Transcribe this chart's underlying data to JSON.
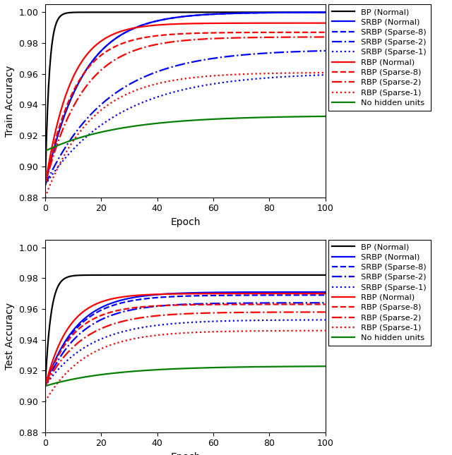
{
  "ylabel_top": "Train Accuracy",
  "ylabel_bottom": "Test Accuracy",
  "xlabel": "Epoch",
  "xlim": [
    0,
    100
  ],
  "ylim": [
    0.88,
    1.005
  ],
  "yticks": [
    0.88,
    0.9,
    0.92,
    0.94,
    0.96,
    0.98,
    1.0
  ],
  "xticks": [
    0,
    20,
    40,
    60,
    80,
    100
  ],
  "legend_entries": [
    {
      "label": "BP (Normal)",
      "color": "#000000",
      "ls": "-",
      "lw": 1.6
    },
    {
      "label": "SRBP (Normal)",
      "color": "#0000ff",
      "ls": "-",
      "lw": 1.6
    },
    {
      "label": "SRBP (Sparse-8)",
      "color": "#0000ff",
      "ls": "--",
      "lw": 1.6
    },
    {
      "label": "SRBP (Sparse-2)",
      "color": "#0000ff",
      "ls": "-.",
      "lw": 1.6
    },
    {
      "label": "SRBP (Sparse-1)",
      "color": "#0000ff",
      "ls": ":",
      "lw": 1.6
    },
    {
      "label": "RBP (Normal)",
      "color": "#ff0000",
      "ls": "-",
      "lw": 1.6
    },
    {
      "label": "RBP (Sparse-8)",
      "color": "#ff0000",
      "ls": "--",
      "lw": 1.6
    },
    {
      "label": "RBP (Sparse-2)",
      "color": "#ff0000",
      "ls": "-.",
      "lw": 1.6
    },
    {
      "label": "RBP (Sparse-1)",
      "color": "#ff0000",
      "ls": ":",
      "lw": 1.6
    },
    {
      "label": "No hidden units",
      "color": "#008000",
      "ls": "-",
      "lw": 1.6
    }
  ],
  "train_curves": [
    [
      0.888,
      1.0,
      0.7
    ],
    [
      0.888,
      1.0,
      0.075
    ],
    [
      0.888,
      1.0,
      0.075
    ],
    [
      0.888,
      0.976,
      0.045
    ],
    [
      0.888,
      0.961,
      0.038
    ],
    [
      0.888,
      0.993,
      0.11
    ],
    [
      0.888,
      0.987,
      0.095
    ],
    [
      0.888,
      0.984,
      0.075
    ],
    [
      0.88,
      0.961,
      0.06
    ],
    [
      0.91,
      0.933,
      0.038
    ]
  ],
  "test_curves": [
    [
      0.91,
      0.982,
      0.5
    ],
    [
      0.91,
      0.971,
      0.09
    ],
    [
      0.91,
      0.969,
      0.09
    ],
    [
      0.91,
      0.964,
      0.08
    ],
    [
      0.91,
      0.953,
      0.062
    ],
    [
      0.91,
      0.97,
      0.12
    ],
    [
      0.91,
      0.963,
      0.1
    ],
    [
      0.91,
      0.958,
      0.075
    ],
    [
      0.9,
      0.946,
      0.068
    ],
    [
      0.91,
      0.923,
      0.042
    ]
  ],
  "bg_color": "#ffffff"
}
